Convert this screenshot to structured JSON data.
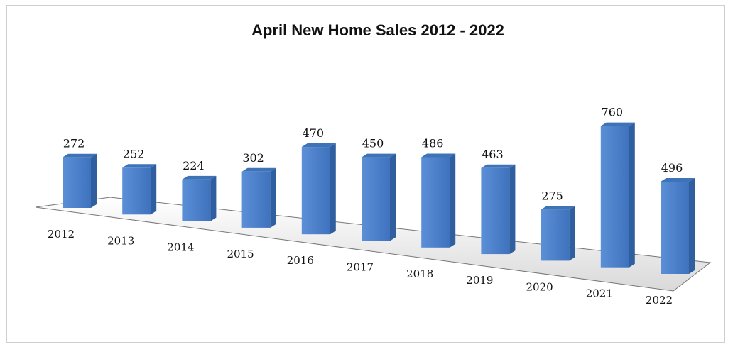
{
  "chart_data": {
    "type": "bar",
    "title": "April New Home Sales 2012 - 2022",
    "xlabel": "",
    "ylabel": "",
    "categories": [
      "2012",
      "2013",
      "2014",
      "2015",
      "2016",
      "2017",
      "2018",
      "2019",
      "2020",
      "2021",
      "2022"
    ],
    "values": [
      272,
      252,
      224,
      302,
      470,
      450,
      486,
      463,
      275,
      760,
      496
    ],
    "ylim": [
      0,
      800
    ],
    "grid": false,
    "legend": "none",
    "data_labels": true,
    "style": "3d-perspective",
    "colors": {
      "bar_front": "#4f81c9",
      "bar_side": "#2f5f9e",
      "bar_top": "#3f73b8",
      "floor": "#f2f2f2"
    }
  }
}
